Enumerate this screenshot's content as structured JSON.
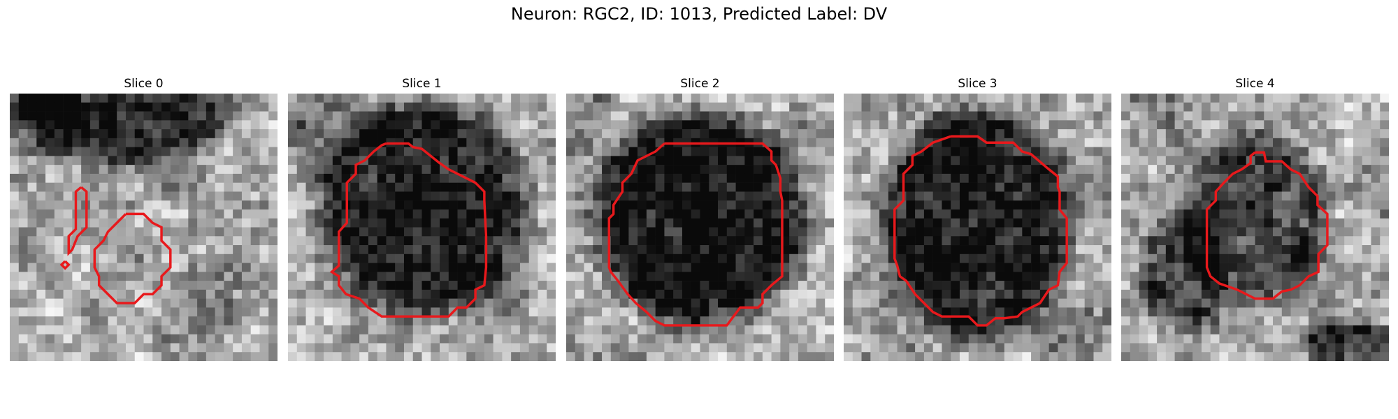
{
  "figure": {
    "title": "Neuron: RGC2, ID: 1013, Predicted Label: DV"
  },
  "contour_color": "#e8191c",
  "panels": [
    {
      "title": "Slice 0",
      "dark_regions": [
        [
          13,
          1,
          10,
          6,
          10
        ],
        [
          3,
          3,
          5,
          4,
          4
        ],
        [
          23,
          23,
          4,
          4,
          3
        ]
      ]
    },
    {
      "title": "Slice 1",
      "dark_regions": [
        [
          15,
          13,
          10,
          10,
          11
        ],
        [
          5,
          3,
          6,
          3,
          4
        ],
        [
          22,
          22,
          4,
          3,
          3
        ]
      ]
    },
    {
      "title": "Slice 2",
      "dark_regions": [
        [
          15,
          14,
          10,
          10,
          12
        ],
        [
          1,
          1,
          3,
          5,
          4
        ],
        [
          26,
          6,
          3,
          3,
          2
        ]
      ]
    },
    {
      "title": "Slice 3",
      "dark_regions": [
        [
          15,
          15,
          9,
          11,
          11
        ],
        [
          12,
          6,
          3,
          3,
          3
        ],
        [
          26,
          27,
          3,
          3,
          2
        ]
      ]
    },
    {
      "title": "Slice 4",
      "dark_regions": [
        [
          15,
          14,
          7,
          8,
          8
        ],
        [
          7,
          20,
          4,
          6,
          7
        ],
        [
          26,
          28,
          5,
          2,
          9
        ],
        [
          3,
          2,
          3,
          3,
          3
        ]
      ]
    }
  ]
}
